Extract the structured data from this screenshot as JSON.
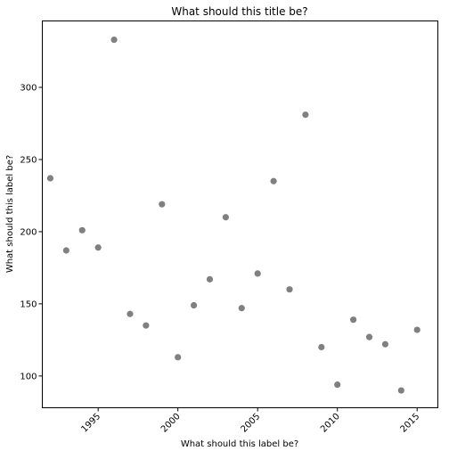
{
  "chart_data": {
    "type": "scatter",
    "title": "What should this title be?",
    "xlabel": "What should this label be?",
    "ylabel": "What should this label be?",
    "x": [
      1992,
      1993,
      1994,
      1995,
      1996,
      1997,
      1998,
      1999,
      2000,
      2001,
      2002,
      2003,
      2004,
      2005,
      2006,
      2007,
      2008,
      2009,
      2010,
      2011,
      2012,
      2013,
      2014,
      2015
    ],
    "y": [
      237,
      187,
      201,
      189,
      333,
      143,
      135,
      219,
      113,
      149,
      167,
      210,
      147,
      171,
      235,
      160,
      281,
      120,
      94,
      139,
      127,
      122,
      90,
      132
    ],
    "xlim": [
      1991.5,
      2016.3
    ],
    "ylim": [
      78,
      346
    ],
    "xticks": [
      1995,
      2000,
      2005,
      2010,
      2015
    ],
    "yticks": [
      100,
      150,
      200,
      250,
      300
    ],
    "grid": false,
    "marker_color": "#808080"
  }
}
